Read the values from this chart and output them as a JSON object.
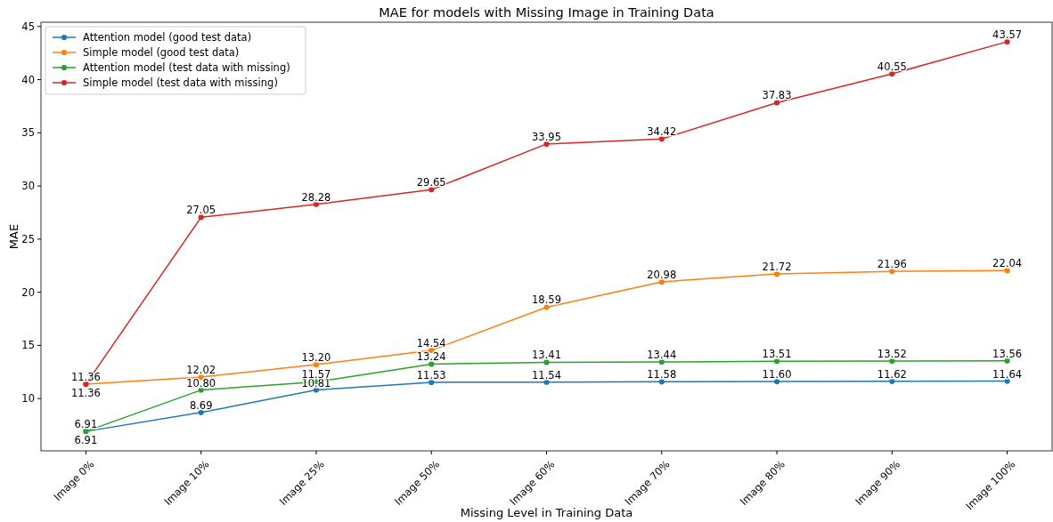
{
  "chart_data": {
    "type": "line",
    "title": "MAE for models with Missing Image in Training Data",
    "xlabel": "Missing Level in Training Data",
    "ylabel": "MAE",
    "categories": [
      "Image 0%",
      "Image 10%",
      "Image 25%",
      "Image 50%",
      "Image 60%",
      "Image 70%",
      "Image 80%",
      "Image 90%",
      "Image 100%"
    ],
    "series": [
      {
        "name": "Attention model (good test data)",
        "color": "#1f77b4",
        "values": [
          6.91,
          8.69,
          10.81,
          11.53,
          11.54,
          11.58,
          11.6,
          11.62,
          11.64
        ],
        "value_labels": [
          "6.91",
          "8.69",
          "10.81",
          "11.53",
          "11.54",
          "11.58",
          "11.60",
          "11.62",
          "11.64"
        ]
      },
      {
        "name": "Simple model (good test data)",
        "color": "#ff7f0e",
        "values": [
          11.36,
          12.02,
          13.2,
          14.54,
          18.59,
          20.98,
          21.72,
          21.96,
          22.04
        ],
        "value_labels": [
          "11.36",
          "12.02",
          "13.20",
          "14.54",
          "18.59",
          "20.98",
          "21.72",
          "21.96",
          "22.04"
        ]
      },
      {
        "name": "Attention model (test data with missing)",
        "color": "#2ca02c",
        "values": [
          6.91,
          10.8,
          11.57,
          13.24,
          13.41,
          13.44,
          13.51,
          13.52,
          13.56
        ],
        "value_labels": [
          "6.91",
          "10.80",
          "11.57",
          "13.24",
          "13.41",
          "13.44",
          "13.51",
          "13.52",
          "13.56"
        ]
      },
      {
        "name": "Simple model (test data with missing)",
        "color": "#d62728",
        "values": [
          11.36,
          27.05,
          28.28,
          29.65,
          33.95,
          34.42,
          37.83,
          40.55,
          43.57
        ],
        "value_labels": [
          "11.36",
          "27.05",
          "28.28",
          "29.65",
          "33.95",
          "34.42",
          "37.83",
          "40.55",
          "43.57"
        ]
      }
    ],
    "ylim": [
      5.08,
      45.4
    ],
    "yticks": [
      10,
      15,
      20,
      25,
      30,
      35,
      40,
      45
    ],
    "legend": "top left",
    "marker": "circle",
    "line_style": "solid"
  }
}
